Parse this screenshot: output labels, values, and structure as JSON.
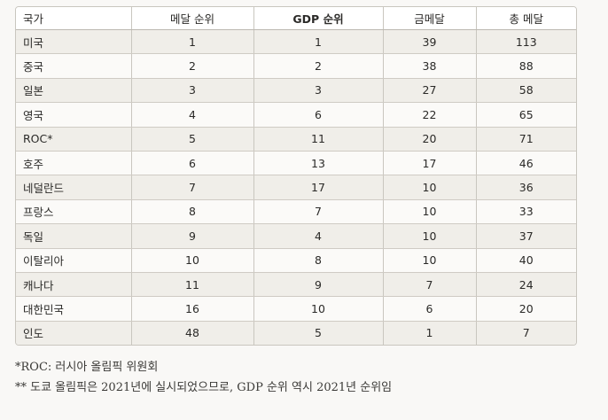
{
  "table": {
    "headers": [
      "국가",
      "메달 순위",
      "GDP 순위",
      "금메달",
      "총 메달"
    ],
    "rows": [
      [
        "미국",
        "1",
        "1",
        "39",
        "113"
      ],
      [
        "중국",
        "2",
        "2",
        "38",
        "88"
      ],
      [
        "일본",
        "3",
        "3",
        "27",
        "58"
      ],
      [
        "영국",
        "4",
        "6",
        "22",
        "65"
      ],
      [
        "ROC*",
        "5",
        "11",
        "20",
        "71"
      ],
      [
        "호주",
        "6",
        "13",
        "17",
        "46"
      ],
      [
        "네덜란드",
        "7",
        "17",
        "10",
        "36"
      ],
      [
        "프랑스",
        "8",
        "7",
        "10",
        "33"
      ],
      [
        "독일",
        "9",
        "4",
        "10",
        "37"
      ],
      [
        "이탈리아",
        "10",
        "8",
        "10",
        "40"
      ],
      [
        "캐나다",
        "11",
        "9",
        "7",
        "24"
      ],
      [
        "대한민국",
        "16",
        "10",
        "6",
        "20"
      ],
      [
        "인도",
        "48",
        "5",
        "1",
        "7"
      ]
    ]
  },
  "notes": {
    "note1": "*ROC: 러시아 올림픽 위원회",
    "note2": "** 도쿄 올림픽은 2021년에 실시되었으므로, GDP 순위 역시 2021년 순위임"
  }
}
